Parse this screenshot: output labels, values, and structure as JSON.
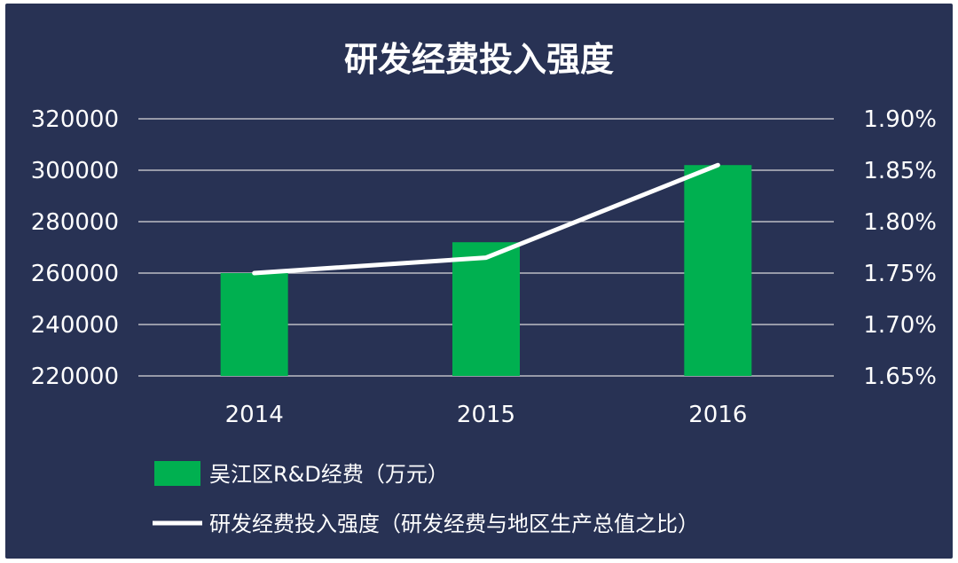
{
  "chart_data": {
    "type": "bar",
    "title": "研发经费投入强度",
    "categories": [
      "2014",
      "2015",
      "2016"
    ],
    "series": [
      {
        "name": "吴江区R&D经费（万元）",
        "type": "bar",
        "axis": "left",
        "values": [
          260000,
          272000,
          302000
        ],
        "color": "#00b050"
      },
      {
        "name": "研发经费投入强度（研发经费与地区生产总值之比）",
        "type": "line",
        "axis": "right",
        "values": [
          1.75,
          1.765,
          1.855
        ],
        "color": "#ffffff"
      }
    ],
    "y_left": {
      "ylim": [
        220000,
        320000
      ],
      "ticks": [
        "220000",
        "240000",
        "260000",
        "280000",
        "300000",
        "320000"
      ]
    },
    "y_right": {
      "ylim": [
        1.65,
        1.9
      ],
      "ticks": [
        "1.65%",
        "1.70%",
        "1.75%",
        "1.80%",
        "1.85%",
        "1.90%"
      ]
    },
    "grid": true,
    "legend_position": "bottom-left",
    "background_color": "#283254",
    "grid_color": "#d9d9d9"
  }
}
